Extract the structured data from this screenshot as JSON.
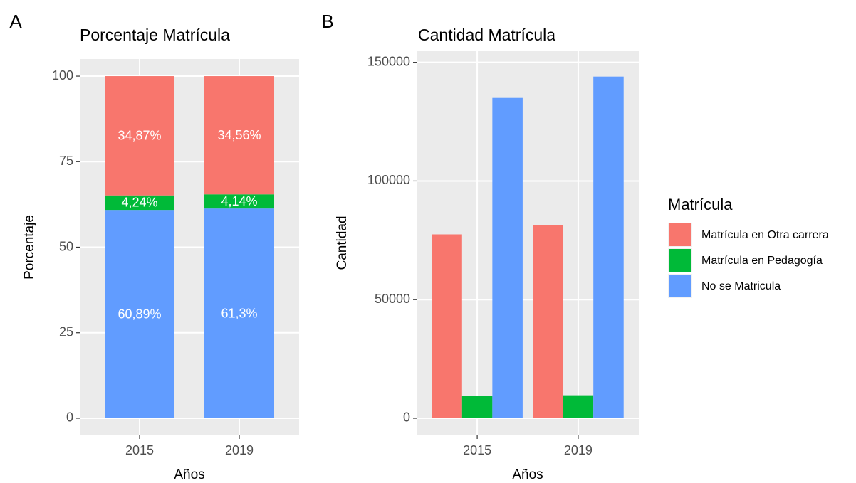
{
  "chart_data": [
    {
      "type": "stacked_bar",
      "tag": "A",
      "title": "Porcentaje Matrícula",
      "x_label": "Años",
      "y_label": "Porcentaje",
      "categories": [
        "2015",
        "2019"
      ],
      "series": [
        {
          "color": "#F8766D",
          "values": [
            34.87,
            34.56
          ],
          "value_labels": [
            "34,87%",
            "34,56%"
          ]
        },
        {
          "color": "#00BA38",
          "values": [
            4.24,
            4.14
          ],
          "value_labels": [
            "4,24%",
            "4,14%"
          ]
        },
        {
          "color": "#619CFF",
          "values": [
            60.89,
            61.3
          ],
          "value_labels": [
            "60,89%",
            "61,3%"
          ]
        }
      ],
      "ylim": [
        -5,
        105
      ],
      "yticks": [
        0,
        25,
        50,
        75,
        100
      ],
      "grid": true
    },
    {
      "type": "grouped_bar",
      "tag": "B",
      "title": "Cantidad Matrícula",
      "x_label": "Años",
      "y_label": "Cantidad",
      "categories": [
        "2015",
        "2019"
      ],
      "legend_title": "Matrícula",
      "series": [
        {
          "name": "Matrícula en Otra carrera",
          "color": "#F8766D",
          "values": [
            77500,
            81400
          ]
        },
        {
          "name": "Matrícula en Pedagogía",
          "color": "#00BA38",
          "values": [
            9400,
            9700
          ]
        },
        {
          "name": "No se Matricula",
          "color": "#619CFF",
          "values": [
            135000,
            144000
          ]
        }
      ],
      "ylim": [
        -7200,
        155000
      ],
      "yticks": [
        0,
        50000,
        100000,
        150000
      ],
      "grid": true
    }
  ]
}
